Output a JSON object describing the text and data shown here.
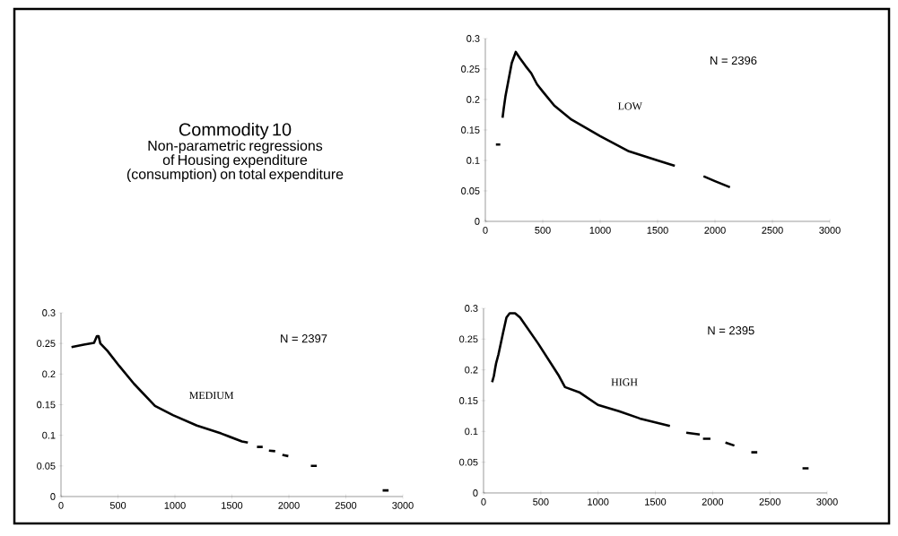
{
  "chart_data": [
    {
      "type": "other",
      "title": "Commodity 10",
      "subtitle": "Non-parametric regressions of Housing expenditure (consumption) on total expenditure"
    },
    {
      "type": "line",
      "xlim": [
        0,
        3000
      ],
      "ylim": [
        0,
        0.3
      ],
      "xticks": [
        0,
        500,
        1000,
        1500,
        2000,
        2500,
        3000
      ],
      "yticks": [
        0,
        0.05,
        0.1,
        0.15,
        0.2,
        0.25,
        0.3
      ],
      "annotations": [
        "N = 2396",
        "LOW"
      ],
      "series": [
        {
          "color": "#000000",
          "x": [
            92,
            130,
            140,
            150,
            160,
            175,
            200,
            230,
            265,
            300,
            350,
            400,
            450,
            500,
            600,
            750,
            1000,
            1250,
            1500,
            1650,
            1780,
            1900,
            2000,
            2130
          ],
          "values": [
            0.126,
            0.126,
            null,
            0.17,
            0.185,
            0.205,
            0.23,
            0.26,
            0.278,
            0.268,
            0.255,
            0.243,
            0.225,
            0.213,
            0.19,
            0.167,
            0.14,
            0.115,
            0.1,
            0.091,
            null,
            0.074,
            0.066,
            0.056
          ]
        }
      ]
    },
    {
      "type": "line",
      "xlim": [
        0,
        3000
      ],
      "ylim": [
        0,
        0.3
      ],
      "xticks": [
        0,
        500,
        1000,
        1500,
        2000,
        2500,
        3000
      ],
      "yticks": [
        0,
        0.05,
        0.1,
        0.15,
        0.2,
        0.25,
        0.3
      ],
      "annotations": [
        "N = 2397",
        "MEDIUM"
      ],
      "series": [
        {
          "color": "#000000",
          "x": [
            92,
            200,
            290,
            315,
            330,
            345,
            407,
            512,
            641,
            825,
            982,
            1192,
            1405,
            1588,
            1640,
            1680,
            1720,
            1770,
            1800,
            1825,
            1880,
            1910,
            1943,
            1995,
            2100,
            2193,
            2245,
            2500,
            2823,
            2875
          ],
          "values": [
            0.244,
            0.248,
            0.251,
            0.262,
            0.262,
            0.25,
            0.238,
            0.213,
            0.184,
            0.148,
            0.133,
            0.116,
            0.103,
            0.09,
            0.088,
            null,
            0.081,
            0.081,
            null,
            0.075,
            0.074,
            null,
            0.068,
            0.066,
            null,
            0.05,
            0.05,
            null,
            0.01,
            0.01
          ]
        }
      ]
    },
    {
      "type": "line",
      "xlim": [
        0,
        3000
      ],
      "ylim": [
        0,
        0.3
      ],
      "xticks": [
        0,
        500,
        1000,
        1500,
        2000,
        2500,
        3000
      ],
      "yticks": [
        0,
        0.05,
        0.1,
        0.15,
        0.2,
        0.25,
        0.3
      ],
      "annotations": [
        "N = 2395",
        "HIGH"
      ],
      "series": [
        {
          "color": "#000000",
          "x": [
            75,
            90,
            100,
            110,
            130,
            170,
            200,
            228,
            275,
            319,
            476,
            659,
            711,
            842,
            999,
            1182,
            1365,
            1627,
            1700,
            1770,
            1888,
            1900,
            1916,
            1981,
            2050,
            2112,
            2190,
            2260,
            2338,
            2390,
            2600,
            2785,
            2838
          ],
          "values": [
            0.18,
            0.19,
            0.201,
            0.211,
            0.225,
            0.26,
            0.285,
            0.292,
            0.292,
            0.285,
            0.243,
            0.19,
            0.172,
            0.163,
            0.143,
            0.133,
            0.121,
            0.109,
            null,
            0.098,
            0.095,
            null,
            0.088,
            0.088,
            null,
            0.082,
            0.077,
            null,
            0.066,
            0.066,
            null,
            0.04,
            0.04
          ]
        }
      ]
    }
  ]
}
